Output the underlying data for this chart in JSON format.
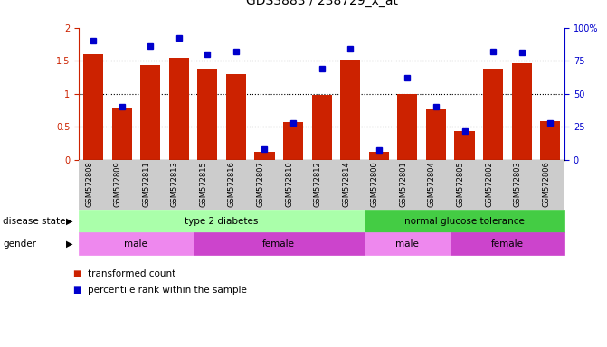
{
  "title": "GDS3883 / 238729_x_at",
  "samples": [
    "GSM572808",
    "GSM572809",
    "GSM572811",
    "GSM572813",
    "GSM572815",
    "GSM572816",
    "GSM572807",
    "GSM572810",
    "GSM572812",
    "GSM572814",
    "GSM572800",
    "GSM572801",
    "GSM572804",
    "GSM572805",
    "GSM572802",
    "GSM572803",
    "GSM572806"
  ],
  "bar_values": [
    1.6,
    0.78,
    1.43,
    1.55,
    1.38,
    1.3,
    0.12,
    0.57,
    0.98,
    1.52,
    0.12,
    0.99,
    0.76,
    0.44,
    1.38,
    1.46,
    0.58
  ],
  "dot_values": [
    90,
    40,
    86,
    92,
    80,
    82,
    8,
    28,
    69,
    84,
    7,
    62,
    40,
    22,
    82,
    81,
    28
  ],
  "bar_color": "#cc2200",
  "dot_color": "#0000cc",
  "ylim_left": [
    0,
    2
  ],
  "ylim_right": [
    0,
    100
  ],
  "yticks_left": [
    0,
    0.5,
    1.0,
    1.5,
    2.0
  ],
  "ytick_labels_left": [
    "0",
    "0.5",
    "1",
    "1.5",
    "2"
  ],
  "yticks_right": [
    0,
    25,
    50,
    75,
    100
  ],
  "ytick_labels_right": [
    "0",
    "25",
    "50",
    "75",
    "100%"
  ],
  "grid_values": [
    0.5,
    1.0,
    1.5
  ],
  "disease_groups": [
    {
      "label": "type 2 diabetes",
      "start": 0,
      "end": 9,
      "color": "#aaffaa"
    },
    {
      "label": "normal glucose tolerance",
      "start": 10,
      "end": 16,
      "color": "#44cc44"
    }
  ],
  "gender_groups": [
    {
      "label": "male",
      "start": 0,
      "end": 3,
      "color": "#ee88ee"
    },
    {
      "label": "female",
      "start": 4,
      "end": 9,
      "color": "#cc44cc"
    },
    {
      "label": "male",
      "start": 10,
      "end": 12,
      "color": "#ee88ee"
    },
    {
      "label": "female",
      "start": 13,
      "end": 16,
      "color": "#cc44cc"
    }
  ],
  "disease_label": "disease state",
  "gender_label": "gender",
  "legend_bar": "transformed count",
  "legend_dot": "percentile rank within the sample",
  "bar_width": 0.7,
  "tick_fontsize": 7,
  "xtick_bg": "#cccccc",
  "n_samples": 17
}
